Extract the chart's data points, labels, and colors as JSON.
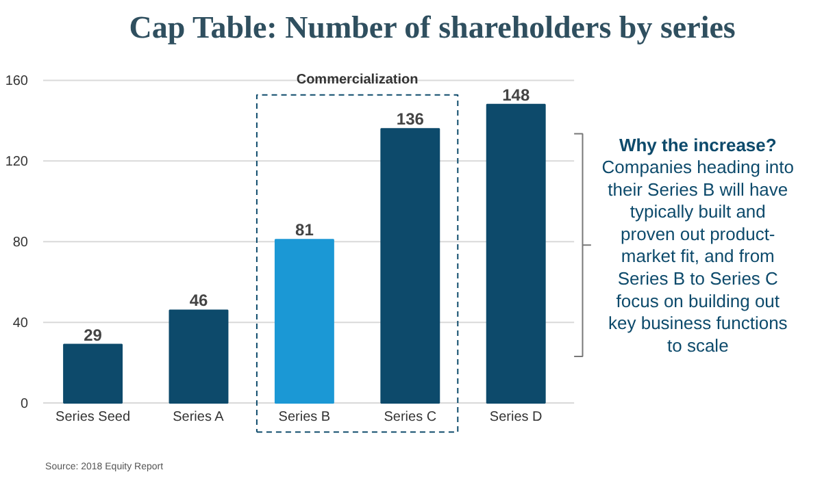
{
  "chart_data": {
    "type": "bar",
    "title": "Cap Table: Number of shareholders by series",
    "categories": [
      "Series Seed",
      "Series A",
      "Series B",
      "Series C",
      "Series D"
    ],
    "values": [
      29,
      46,
      81,
      136,
      148
    ],
    "colors": [
      "#0d4a6b",
      "#0d4a6b",
      "#1b98d5",
      "#0d4a6b",
      "#0d4a6b"
    ],
    "ylim": [
      0,
      160
    ],
    "yticks": [
      0,
      40,
      80,
      120,
      160
    ],
    "grid": "y",
    "data_labels": true,
    "annotations": [
      "Commercialization",
      "Why the increase?",
      "Companies heading into their Series B will have typically built and proven out product-market fit, and from Series B to Series C focus on building out key business functions to scale",
      "Source: 2018 Equity Report"
    ]
  }
}
